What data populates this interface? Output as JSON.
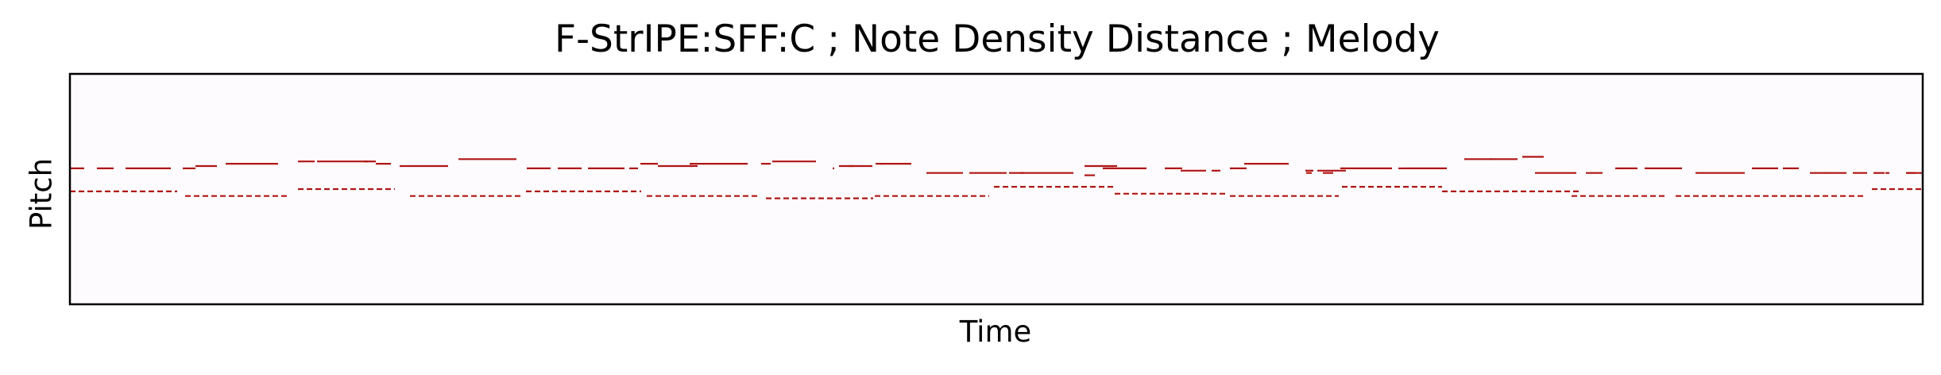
{
  "chart_data": {
    "type": "piano-roll",
    "title": "F-StrIPE:SFF:C ; Note Density Distance ; Melody",
    "xlabel": "Time",
    "ylabel": "Pitch",
    "x_ticks": "none",
    "y_ticks": "none",
    "grid": false,
    "legend": "none",
    "colors": {
      "background": "#fdfbfd",
      "note": "#b01515",
      "frame": "#000000"
    },
    "ylim": [
      0,
      100
    ],
    "xlim": [
      0,
      2332
    ],
    "series": [
      {
        "style": "solid",
        "notes": [
          [
            0,
            18,
            59
          ],
          [
            34,
            55,
            59
          ],
          [
            70,
            127,
            59
          ],
          [
            142,
            158,
            59
          ],
          [
            158,
            185,
            60
          ],
          [
            196,
            262,
            61
          ],
          [
            287,
            308,
            62
          ],
          [
            311,
            343,
            62
          ],
          [
            343,
            375,
            62
          ],
          [
            370,
            385,
            62
          ],
          [
            385,
            404,
            61
          ],
          [
            415,
            440,
            60
          ],
          [
            440,
            476,
            60
          ],
          [
            489,
            562,
            63
          ],
          [
            575,
            605,
            59
          ],
          [
            614,
            644,
            59
          ],
          [
            652,
            698,
            59
          ],
          [
            704,
            715,
            59
          ],
          [
            718,
            740,
            61
          ],
          [
            740,
            783,
            60
          ],
          [
            781,
            790,
            60
          ],
          [
            780,
            853,
            61
          ],
          [
            870,
            882,
            61
          ],
          [
            884,
            939,
            62
          ],
          [
            960,
            962,
            59
          ],
          [
            968,
            986,
            60
          ],
          [
            980,
            1010,
            60
          ],
          [
            1014,
            1023,
            61
          ],
          [
            1020,
            1059,
            61
          ],
          [
            1078,
            1124,
            57
          ],
          [
            1132,
            1179,
            57
          ],
          [
            1182,
            1201,
            57
          ],
          [
            1196,
            1223,
            57
          ],
          [
            1223,
            1263,
            57
          ],
          [
            1277,
            1290,
            56
          ],
          [
            1277,
            1313,
            60
          ],
          [
            1312,
            1318,
            60
          ],
          [
            1300,
            1355,
            59
          ],
          [
            1378,
            1400,
            59
          ],
          [
            1398,
            1430,
            58
          ],
          [
            1437,
            1448,
            58
          ],
          [
            1460,
            1481,
            59
          ],
          [
            1478,
            1534,
            61
          ],
          [
            1555,
            1565,
            58
          ],
          [
            1556,
            1563,
            57
          ],
          [
            1570,
            1606,
            58
          ],
          [
            1577,
            1590,
            57
          ],
          [
            1599,
            1620,
            59
          ],
          [
            1620,
            1664,
            59
          ],
          [
            1672,
            1682,
            59
          ],
          [
            1682,
            1733,
            59
          ],
          [
            1755,
            1790,
            63
          ],
          [
            1788,
            1822,
            63
          ],
          [
            1828,
            1855,
            64
          ],
          [
            1844,
            1896,
            57
          ],
          [
            1908,
            1929,
            57
          ],
          [
            1945,
            1973,
            59
          ],
          [
            1982,
            2029,
            59
          ],
          [
            2046,
            2108,
            57
          ],
          [
            2117,
            2150,
            59
          ],
          [
            2156,
            2176,
            59
          ],
          [
            2190,
            2211,
            57
          ],
          [
            2210,
            2236,
            57
          ],
          [
            2244,
            2262,
            57
          ],
          [
            2270,
            2284,
            57
          ],
          [
            2311,
            2323,
            57
          ],
          [
            2312,
            2332,
            57
          ],
          [
            2285,
            2290,
            57
          ]
        ]
      },
      {
        "style": "dashed",
        "notes": [
          [
            0,
            135,
            49
          ],
          [
            145,
            277,
            47
          ],
          [
            287,
            409,
            50
          ],
          [
            428,
            570,
            47
          ],
          [
            574,
            719,
            49
          ],
          [
            726,
            868,
            47
          ],
          [
            876,
            1011,
            46
          ],
          [
            1013,
            1157,
            47
          ],
          [
            1163,
            1315,
            51
          ],
          [
            1315,
            1456,
            48
          ],
          [
            1460,
            1597,
            47
          ],
          [
            1601,
            1727,
            51
          ],
          [
            1727,
            1901,
            49
          ],
          [
            1890,
            2008,
            47
          ],
          [
            2021,
            2179,
            47
          ],
          [
            2173,
            2260,
            47
          ],
          [
            2268,
            2332,
            50
          ]
        ]
      }
    ]
  }
}
